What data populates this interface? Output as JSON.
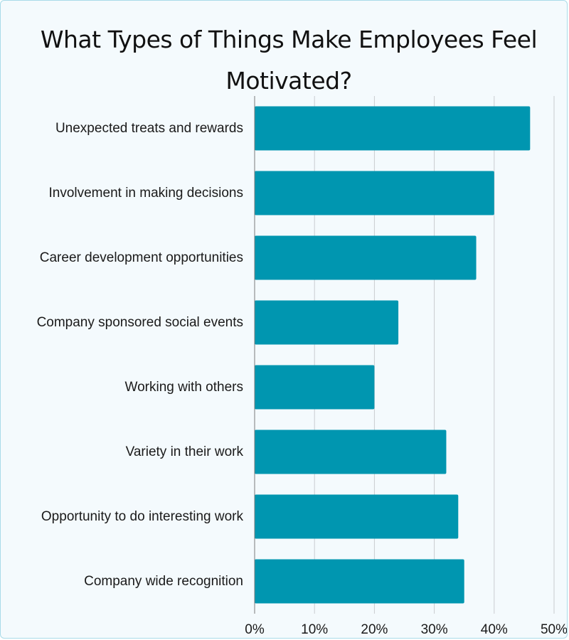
{
  "chart_data": {
    "type": "bar",
    "orientation": "horizontal",
    "title": "What Types of Things Make Employees Feel Motivated?",
    "categories": [
      "Unexpected treats and rewards",
      "Involvement in making decisions",
      "Career development opportunities",
      "Company sponsored social events",
      "Working with others",
      "Variety in their work",
      "Opportunity to do interesting work",
      "Company wide recognition"
    ],
    "values": [
      46,
      40,
      37,
      24,
      20,
      32,
      34,
      35
    ],
    "xlim": [
      0,
      50
    ],
    "x_ticks": [
      "0%",
      "10%",
      "20%",
      "30%",
      "40%",
      "50%"
    ],
    "x_tick_values": [
      0,
      10,
      20,
      30,
      40,
      50
    ],
    "grid": "vertical",
    "bar_color": "#0096b0",
    "grid_color": "#c9ccd0",
    "axis_color": "#7a7a7a"
  }
}
